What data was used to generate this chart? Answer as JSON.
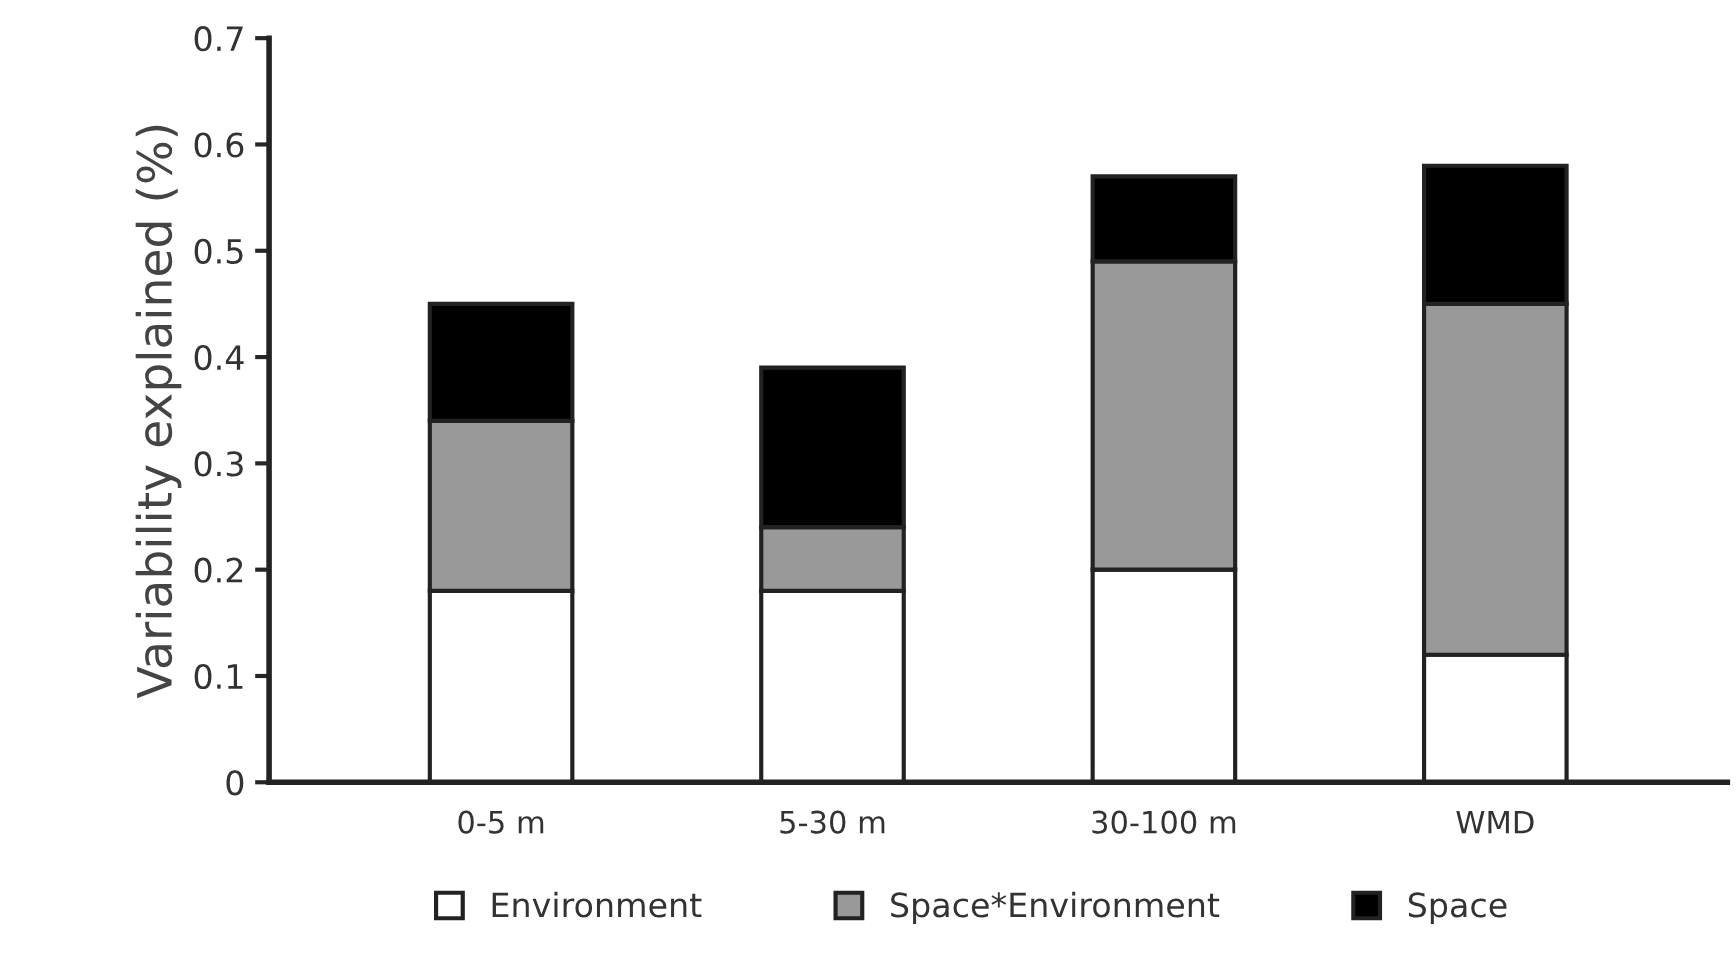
{
  "chart_data": {
    "type": "bar",
    "stacked": true,
    "ylabel": "Variability explained (%)",
    "categories": [
      "0-5 m",
      "5-30 m",
      "30-100 m",
      "WMD"
    ],
    "series": [
      {
        "name": "Environment",
        "color": "#ffffff",
        "values": [
          0.18,
          0.18,
          0.2,
          0.12
        ]
      },
      {
        "name": "Space*Environment",
        "color": "#999999",
        "values": [
          0.16,
          0.06,
          0.29,
          0.33
        ]
      },
      {
        "name": "Space",
        "color": "#000000",
        "values": [
          0.11,
          0.15,
          0.08,
          0.13
        ]
      }
    ],
    "ylim": [
      0,
      0.7
    ],
    "yticks": [
      0,
      0.1,
      0.2,
      0.3,
      0.4,
      0.5,
      0.6,
      0.7
    ],
    "grid": false,
    "legend": "bottom"
  }
}
